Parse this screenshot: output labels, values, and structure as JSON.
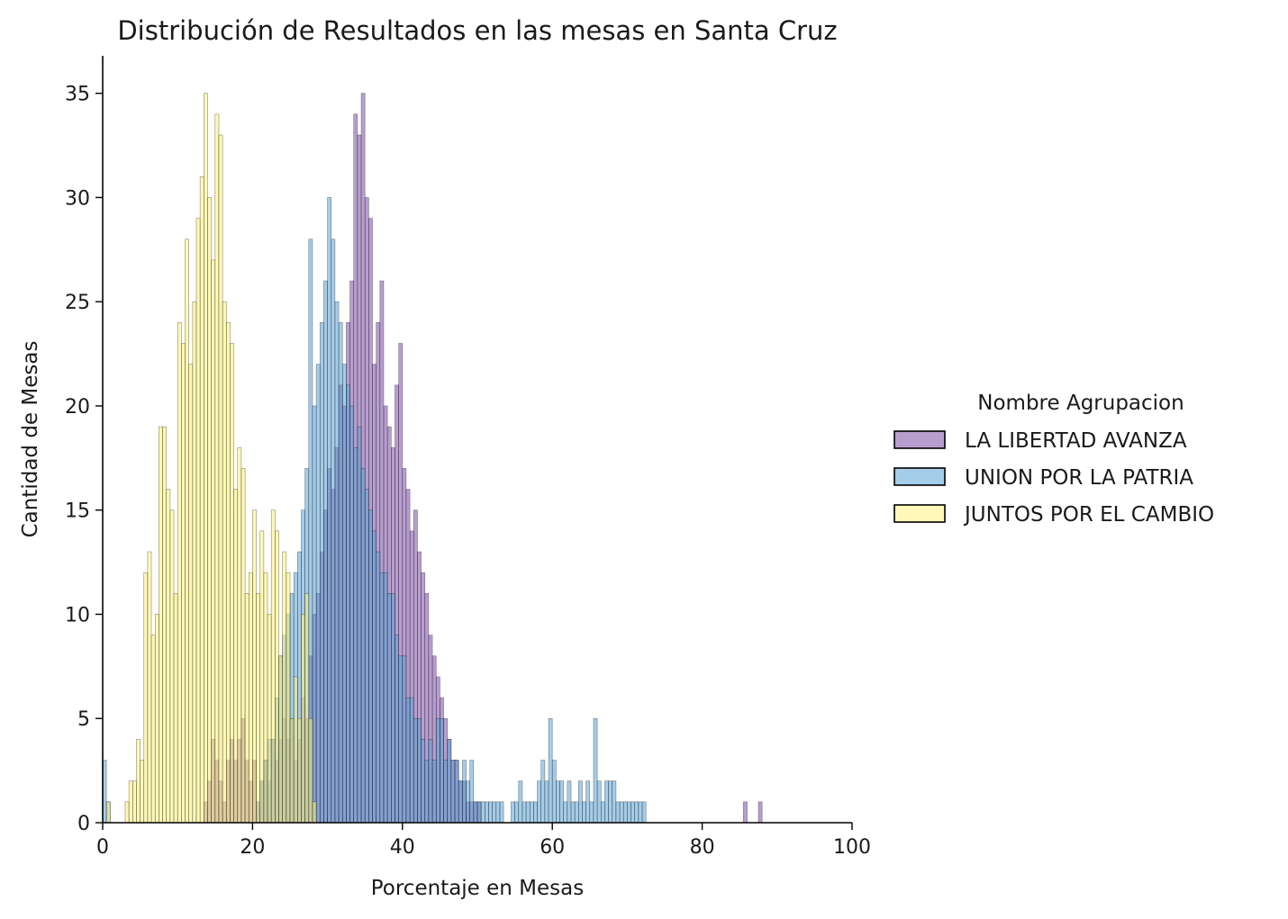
{
  "chart_data": {
    "type": "bar",
    "title": "Distribución de Resultados en las mesas en Santa Cruz",
    "xlabel": "Porcentaje en Mesas",
    "ylabel": "Cantidad de Mesas",
    "xlim": [
      0,
      100
    ],
    "ylim": [
      0,
      36.8
    ],
    "xticks": [
      0,
      20,
      40,
      60,
      80,
      100
    ],
    "yticks": [
      0,
      5,
      10,
      15,
      20,
      25,
      30,
      35
    ],
    "bin_width": 0.5,
    "grid": false,
    "legend": {
      "title": "Nombre Agrupacion",
      "placement": "center-right"
    },
    "series": [
      {
        "name": "LA LIBERTAD AVANZA",
        "color": "#7d4fa8",
        "x": [
          13.5,
          14,
          14.5,
          15,
          15.5,
          16,
          16.5,
          17,
          17.5,
          18,
          18.5,
          19,
          19.5,
          20,
          20.5,
          21,
          21.5,
          22,
          22.5,
          23,
          23.5,
          24,
          24.5,
          25,
          25.5,
          26,
          26.5,
          27,
          27.5,
          28,
          28.5,
          29,
          29.5,
          30,
          30.5,
          31,
          31.5,
          32,
          32.5,
          33,
          33.5,
          34,
          34.5,
          35,
          35.5,
          36,
          36.5,
          37,
          37.5,
          38,
          38.5,
          39,
          39.5,
          40,
          40.5,
          41,
          41.5,
          42,
          42.5,
          43,
          43.5,
          44,
          44.5,
          45,
          45.5,
          46,
          46.5,
          47,
          47.5,
          48,
          48.5,
          49,
          49.5,
          50,
          85.5,
          87.5
        ],
        "values": [
          1,
          2,
          4,
          3,
          2,
          1,
          3,
          4,
          3,
          4,
          5,
          3,
          2,
          3,
          1,
          2,
          3,
          2,
          4,
          3,
          4,
          5,
          4,
          5,
          3,
          4,
          6,
          5,
          8,
          10,
          11,
          13,
          15,
          17,
          16,
          18,
          21,
          20,
          24,
          26,
          34,
          33,
          35,
          30,
          29,
          22,
          24,
          26,
          20,
          19,
          18,
          21,
          23,
          17,
          16,
          14,
          15,
          13,
          12,
          11,
          9,
          8,
          7,
          6,
          5,
          4,
          3,
          3,
          2,
          2,
          1,
          1,
          1,
          1,
          1,
          1
        ]
      },
      {
        "name": "UNION POR LA PATRIA",
        "color": "#5ba3d6",
        "x": [
          0,
          0.5,
          20.5,
          21,
          21.5,
          22,
          22.5,
          23,
          23.5,
          24,
          24.5,
          25,
          25.5,
          26,
          26.5,
          27,
          27.5,
          28,
          28.5,
          29,
          29.5,
          30,
          30.5,
          31,
          31.5,
          32,
          32.5,
          33,
          33.5,
          34,
          34.5,
          35,
          35.5,
          36,
          36.5,
          37,
          37.5,
          38,
          38.5,
          39,
          39.5,
          40,
          40.5,
          41,
          41.5,
          42,
          42.5,
          43,
          43.5,
          44,
          44.5,
          45,
          45.5,
          46,
          46.5,
          47,
          47.5,
          48,
          48.5,
          49,
          49.5,
          50,
          50.5,
          51,
          51.5,
          52,
          52.5,
          53,
          54.5,
          55,
          55.5,
          56,
          56.5,
          57,
          57.5,
          58,
          58.5,
          59,
          59.5,
          60,
          60.5,
          61,
          61.5,
          62,
          62.5,
          63,
          63.5,
          64,
          64.5,
          65,
          65.5,
          66,
          66.5,
          67,
          67.5,
          68,
          68.5,
          69,
          69.5,
          70,
          70.5,
          71,
          71.5,
          72
        ],
        "values": [
          3,
          1,
          1,
          2,
          3,
          4,
          4,
          6,
          8,
          9,
          10,
          11,
          12,
          13,
          15,
          17,
          28,
          20,
          22,
          24,
          26,
          30,
          28,
          25,
          24,
          22,
          21,
          20,
          18,
          19,
          17,
          16,
          15,
          14,
          13,
          12,
          12,
          11,
          11,
          9,
          8,
          8,
          6,
          6,
          5,
          5,
          4,
          3,
          4,
          3,
          5,
          5,
          3,
          4,
          3,
          3,
          2,
          3,
          2,
          3,
          1,
          1,
          1,
          1,
          1,
          1,
          1,
          1,
          1,
          1,
          2,
          1,
          1,
          1,
          1,
          2,
          3,
          2,
          5,
          3,
          2,
          2,
          1,
          2,
          1,
          1,
          2,
          1,
          2,
          1,
          5,
          2,
          1,
          2,
          2,
          2,
          1,
          1,
          1,
          1,
          1,
          1,
          1,
          1
        ]
      },
      {
        "name": "JUNTOS POR EL CAMBIO",
        "color": "#fff27a",
        "x": [
          0.5,
          3,
          3.5,
          4,
          4.5,
          5,
          5.5,
          6,
          6.5,
          7,
          7.5,
          8,
          8.5,
          9,
          9.5,
          10,
          10.5,
          11,
          11.5,
          12,
          12.5,
          13,
          13.5,
          14,
          14.5,
          15,
          15.5,
          16,
          16.5,
          17,
          17.5,
          18,
          18.5,
          19,
          19.5,
          20,
          20.5,
          21,
          21.5,
          22,
          22.5,
          23,
          23.5,
          24,
          24.5,
          25,
          25.5,
          26,
          26.5,
          27,
          27.5,
          28
        ],
        "values": [
          1,
          1,
          2,
          2,
          4,
          3,
          12,
          13,
          9,
          10,
          19,
          19,
          16,
          15,
          11,
          24,
          23,
          28,
          22,
          25,
          29,
          31,
          35,
          30,
          27,
          34,
          33,
          25,
          24,
          23,
          16,
          18,
          17,
          11,
          12,
          15,
          11,
          14,
          12,
          10,
          15,
          14,
          8,
          13,
          12,
          5,
          7,
          5,
          10,
          11,
          5,
          1
        ]
      }
    ]
  }
}
